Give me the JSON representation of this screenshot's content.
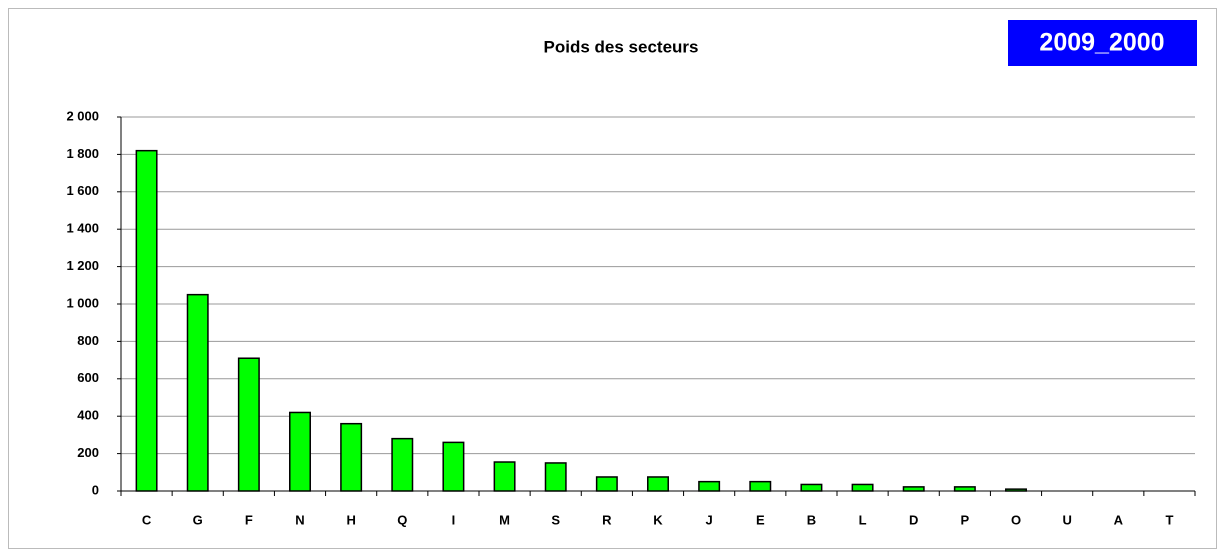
{
  "chart_data": {
    "type": "bar",
    "title": "Poids des secteurs",
    "annotation": "2009_2000",
    "categories": [
      "C",
      "G",
      "F",
      "N",
      "H",
      "Q",
      "I",
      "M",
      "S",
      "R",
      "K",
      "J",
      "E",
      "B",
      "L",
      "D",
      "P",
      "O",
      "U",
      "A",
      "T"
    ],
    "values": [
      1820,
      1050,
      710,
      420,
      360,
      280,
      260,
      155,
      150,
      75,
      75,
      50,
      50,
      35,
      35,
      22,
      22,
      10,
      0,
      0,
      0
    ],
    "color": "#00ff00",
    "ylim": [
      0,
      2000
    ],
    "yticks": [
      0,
      {
        "value": 200,
        "label": "200"
      },
      {
        "value": 400,
        "label": "400"
      },
      {
        "value": 600,
        "label": "600"
      },
      {
        "value": 800,
        "label": "800"
      },
      {
        "value": 1000,
        "label": "1 000"
      },
      {
        "value": 1200,
        "label": "1 200"
      },
      {
        "value": 1400,
        "label": "1 400"
      },
      {
        "value": 1600,
        "label": "1 600"
      },
      {
        "value": 1800,
        "label": "1 800"
      },
      {
        "value": 2000,
        "label": "2 000"
      }
    ],
    "grid": true
  }
}
